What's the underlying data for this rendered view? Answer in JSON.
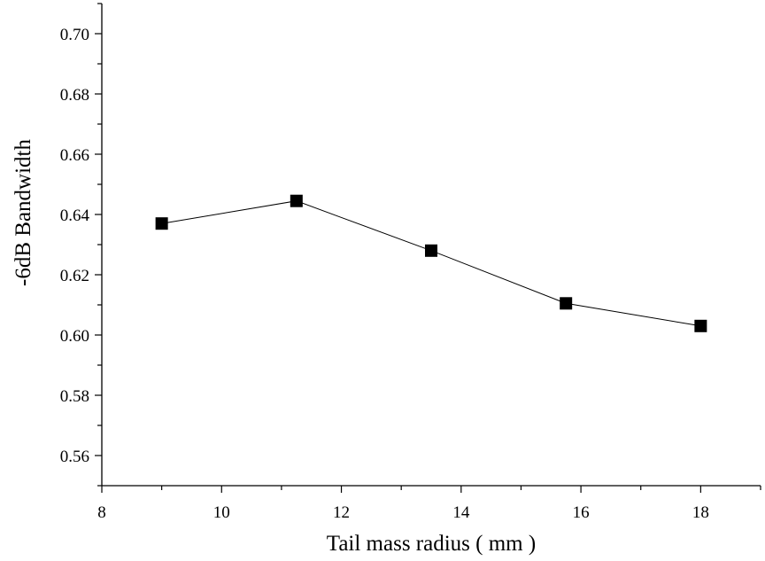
{
  "chart_data": {
    "type": "line",
    "xlabel": "Tail mass radius ( mm )",
    "ylabel": "-6dB Bandwidth",
    "xlim": [
      8,
      19
    ],
    "ylim": [
      0.55,
      0.71
    ],
    "x_ticks": [
      8,
      10,
      12,
      14,
      16,
      18
    ],
    "y_ticks": [
      0.56,
      0.58,
      0.6,
      0.62,
      0.64,
      0.66,
      0.68,
      0.7
    ],
    "x_tick_labels": [
      "8",
      "10",
      "12",
      "14",
      "16",
      "18"
    ],
    "y_tick_labels": [
      "0.56",
      "0.58",
      "0.60",
      "0.62",
      "0.64",
      "0.66",
      "0.68",
      "0.70"
    ],
    "grid": false,
    "marker": "square",
    "line_color": "#000000",
    "series": [
      {
        "x": [
          9.0,
          11.25,
          13.5,
          15.75,
          18.0
        ],
        "y": [
          0.637,
          0.6445,
          0.628,
          0.6105,
          0.603
        ]
      }
    ]
  }
}
